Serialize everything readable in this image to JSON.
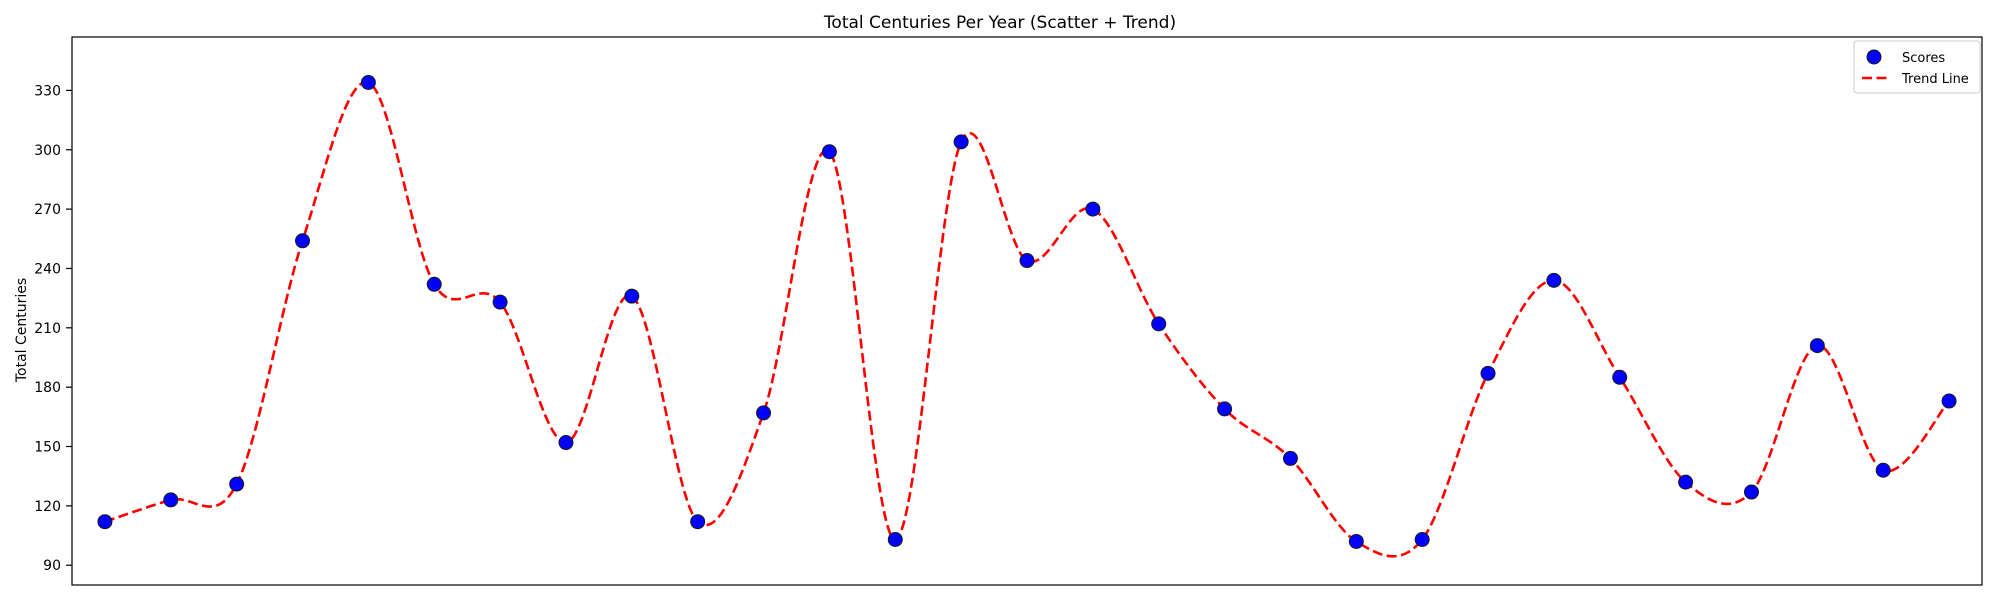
{
  "chart_data": {
    "type": "scatter",
    "title": "Total Centuries Per Year (Scatter + Trend)",
    "xlabel": "",
    "ylabel": "Total Centuries",
    "xlim": [
      -0.5,
      28.5
    ],
    "ylim": [
      80,
      357
    ],
    "yticks": [
      90,
      120,
      150,
      180,
      210,
      240,
      270,
      300,
      330
    ],
    "grid": false,
    "legend": {
      "position": "top-right",
      "entries": [
        "Scores",
        "Trend Line"
      ]
    },
    "x": [
      0,
      1,
      2,
      3,
      4,
      5,
      6,
      7,
      8,
      9,
      10,
      11,
      12,
      13,
      14,
      15,
      16,
      17,
      18,
      19,
      20,
      21,
      22,
      23,
      24,
      25,
      26,
      27,
      28
    ],
    "series": [
      {
        "name": "Scores",
        "kind": "scatter",
        "color": "#0000ff",
        "edgecolor": "#1a1a1a",
        "values": [
          112,
          123,
          131,
          254,
          334,
          232,
          223,
          152,
          226,
          112,
          167,
          299,
          103,
          304,
          244,
          270,
          212,
          169,
          144,
          102,
          103,
          187,
          234,
          185,
          132,
          127,
          201,
          138,
          173
        ]
      },
      {
        "name": "Trend Line",
        "kind": "line",
        "style": "dashed",
        "color": "#ff0000",
        "values": [
          112,
          123,
          131,
          254,
          334,
          232,
          223,
          152,
          226,
          112,
          167,
          299,
          103,
          304,
          244,
          270,
          212,
          169,
          144,
          102,
          103,
          187,
          234,
          185,
          132,
          127,
          201,
          138,
          173
        ]
      }
    ]
  }
}
